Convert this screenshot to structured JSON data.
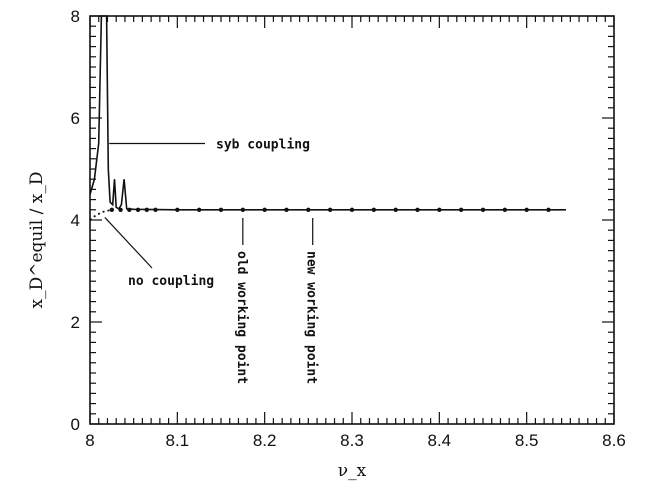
{
  "chart_data": {
    "type": "line",
    "title": "",
    "xlabel": "ν_x",
    "ylabel": "x_D^equil / x_D",
    "xlim": [
      8.0,
      8.6
    ],
    "ylim": [
      0,
      8
    ],
    "x_ticks": [
      "8",
      "8.1",
      "8.2",
      "8.3",
      "8.4",
      "8.5",
      "8.6"
    ],
    "y_ticks": [
      "0",
      "2",
      "4",
      "6",
      "8"
    ],
    "grid": false,
    "legend": "none",
    "series": [
      {
        "x": [
          8.0,
          8.005,
          8.01,
          8.013,
          8.015,
          8.017,
          8.019,
          8.021,
          8.023,
          8.026,
          8.028,
          8.03,
          8.033,
          8.036,
          8.039,
          8.042,
          8.05,
          8.1,
          8.2,
          8.3,
          8.4,
          8.5,
          8.545
        ],
        "y": [
          4.5,
          4.8,
          5.5,
          8.0,
          8.0,
          8.0,
          8.0,
          5.0,
          4.35,
          4.3,
          4.8,
          4.25,
          4.22,
          4.3,
          4.8,
          4.22,
          4.21,
          4.2,
          4.2,
          4.2,
          4.2,
          4.2,
          4.2
        ]
      },
      {
        "x": [
          8.025,
          8.035,
          8.045,
          8.055,
          8.065,
          8.075,
          8.1,
          8.125,
          8.15,
          8.175,
          8.2,
          8.225,
          8.25,
          8.275,
          8.3,
          8.325,
          8.35,
          8.375,
          8.4,
          8.425,
          8.45,
          8.475,
          8.5,
          8.525
        ],
        "y": [
          4.2,
          4.2,
          4.2,
          4.2,
          4.2,
          4.2,
          4.2,
          4.2,
          4.2,
          4.2,
          4.2,
          4.2,
          4.2,
          4.2,
          4.2,
          4.2,
          4.2,
          4.2,
          4.2,
          4.2,
          4.2,
          4.2,
          4.2,
          4.2
        ]
      },
      {
        "x": [
          8.0,
          8.005,
          8.01,
          8.015,
          8.02,
          8.025
        ],
        "y": [
          4.0,
          4.07,
          4.12,
          4.16,
          4.18,
          4.2
        ]
      }
    ],
    "annotations": {
      "syb": "syb coupling",
      "nocoup": "no coupling",
      "old_wp": "old working point",
      "new_wp": "new working point"
    },
    "markers": {
      "old_x": 8.175,
      "new_x": 8.255
    }
  }
}
